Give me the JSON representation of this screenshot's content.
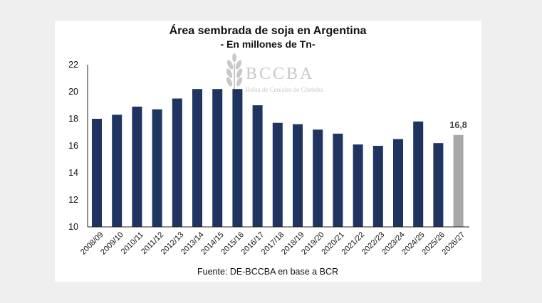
{
  "chart_data": {
    "type": "bar",
    "title": "Área sembrada de soja en Argentina",
    "subtitle": "- En millones de Tn-",
    "categories": [
      "2008/09",
      "2009/10",
      "2010/11",
      "2011/12",
      "2012/13",
      "2013/14",
      "2014/15",
      "2015/16",
      "2016/17",
      "2017/18",
      "2018/19",
      "2019/20",
      "2020/21",
      "2021/22",
      "2022/23",
      "2023/24",
      "2024/25",
      "2025/26",
      "2026/27"
    ],
    "values": [
      18.0,
      18.3,
      18.9,
      18.7,
      19.5,
      20.2,
      20.2,
      20.2,
      19.0,
      17.7,
      17.6,
      17.2,
      16.9,
      16.1,
      16.0,
      16.5,
      17.8,
      16.2,
      16.8
    ],
    "ylim": [
      10,
      22
    ],
    "yticks": [
      10,
      12,
      14,
      16,
      18,
      20,
      22
    ],
    "data_labels": [
      {
        "index": 18,
        "text": "16,8"
      }
    ],
    "highlight_index": 18,
    "colors": {
      "bar": "#1f3461",
      "highlight": "#a8a8a8",
      "watermark": "#c8c8c8"
    },
    "source": "Fuente: DE-BCCBA en base a BCR",
    "grid": false,
    "legend": "none"
  },
  "watermark": {
    "name": "BCCBA",
    "tagline": "Bolsa de Cereales de Córdoba",
    "icon": "wheat-icon"
  }
}
